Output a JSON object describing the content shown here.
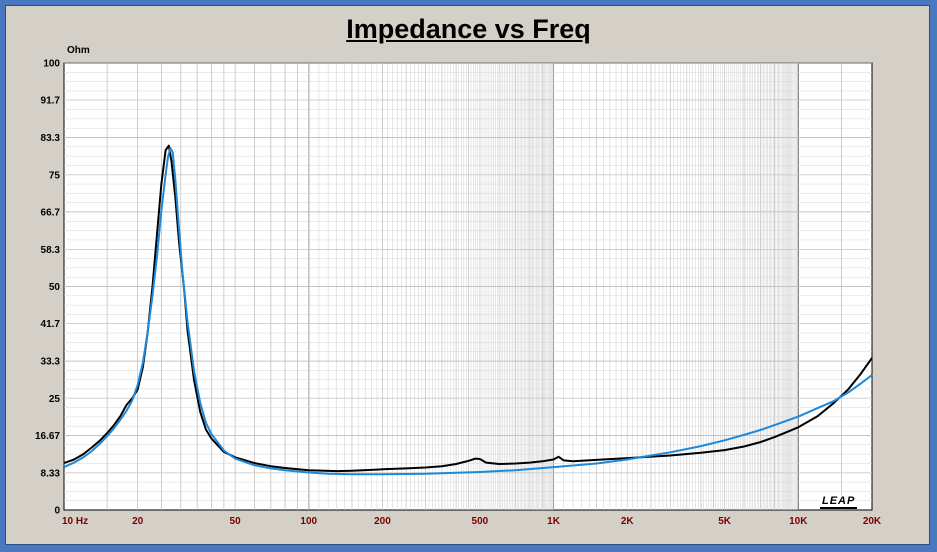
{
  "unit_label": "Ohm",
  "logo_text": "LEAP",
  "colors": {
    "frame_border": "#4a78c0",
    "panel": "#d4d0c8",
    "measured": "#000000",
    "model": "#1f88d8",
    "grid": "#9a9a9a",
    "x_tick": "#7a0000"
  },
  "chart_data": {
    "type": "line",
    "title": "Impedance vs Freq",
    "xlabel": "",
    "ylabel": "Ohm",
    "x_scale": "log",
    "xlim": [
      10,
      20000
    ],
    "ylim": [
      0,
      100
    ],
    "y_ticks": [
      {
        "value": 0,
        "label": "0"
      },
      {
        "value": 8.33,
        "label": "8.33"
      },
      {
        "value": 16.67,
        "label": "16.67"
      },
      {
        "value": 25,
        "label": "25"
      },
      {
        "value": 33.3,
        "label": "33.3"
      },
      {
        "value": 41.7,
        "label": "41.7"
      },
      {
        "value": 50,
        "label": "50"
      },
      {
        "value": 58.3,
        "label": "58.3"
      },
      {
        "value": 66.7,
        "label": "66.7"
      },
      {
        "value": 75,
        "label": "75"
      },
      {
        "value": 83.3,
        "label": "83.3"
      },
      {
        "value": 91.7,
        "label": "91.7"
      },
      {
        "value": 100,
        "label": "100"
      }
    ],
    "x_ticks": [
      {
        "value": 10,
        "label": "10  Hz"
      },
      {
        "value": 20,
        "label": "20"
      },
      {
        "value": 50,
        "label": "50"
      },
      {
        "value": 100,
        "label": "100"
      },
      {
        "value": 200,
        "label": "200"
      },
      {
        "value": 500,
        "label": "500"
      },
      {
        "value": 1000,
        "label": "1K"
      },
      {
        "value": 2000,
        "label": "2K"
      },
      {
        "value": 5000,
        "label": "5K"
      },
      {
        "value": 10000,
        "label": "10K"
      },
      {
        "value": 20000,
        "label": "20K"
      }
    ],
    "grid": true,
    "series": [
      {
        "color": "#000000",
        "points": [
          [
            10,
            10.5
          ],
          [
            11,
            11.3
          ],
          [
            12,
            12.5
          ],
          [
            13,
            14
          ],
          [
            14,
            15.5
          ],
          [
            15,
            17.2
          ],
          [
            16,
            19
          ],
          [
            17,
            21
          ],
          [
            18,
            23.5
          ],
          [
            19,
            25
          ],
          [
            20,
            27
          ],
          [
            21,
            32
          ],
          [
            22,
            40
          ],
          [
            23,
            50
          ],
          [
            24,
            62
          ],
          [
            25,
            73
          ],
          [
            26,
            80.5
          ],
          [
            26.8,
            81.5
          ],
          [
            27.5,
            78
          ],
          [
            28.5,
            70
          ],
          [
            29.5,
            60
          ],
          [
            31,
            49
          ],
          [
            32,
            40
          ],
          [
            34,
            29
          ],
          [
            36,
            22
          ],
          [
            38,
            18
          ],
          [
            40,
            16
          ],
          [
            45,
            13
          ],
          [
            50,
            11.8
          ],
          [
            60,
            10.5
          ],
          [
            70,
            9.8
          ],
          [
            80,
            9.4
          ],
          [
            100,
            8.9
          ],
          [
            130,
            8.7
          ],
          [
            150,
            8.8
          ],
          [
            200,
            9.1
          ],
          [
            250,
            9.3
          ],
          [
            300,
            9.5
          ],
          [
            350,
            9.8
          ],
          [
            400,
            10.3
          ],
          [
            450,
            11
          ],
          [
            480,
            11.5
          ],
          [
            500,
            11.4
          ],
          [
            530,
            10.6
          ],
          [
            600,
            10.3
          ],
          [
            700,
            10.4
          ],
          [
            800,
            10.6
          ],
          [
            900,
            10.9
          ],
          [
            1000,
            11.3
          ],
          [
            1050,
            11.9
          ],
          [
            1100,
            11.1
          ],
          [
            1200,
            10.9
          ],
          [
            1500,
            11.2
          ],
          [
            2000,
            11.6
          ],
          [
            3000,
            12.2
          ],
          [
            4000,
            12.8
          ],
          [
            5000,
            13.4
          ],
          [
            6000,
            14.2
          ],
          [
            7000,
            15.2
          ],
          [
            8000,
            16.3
          ],
          [
            10000,
            18.5
          ],
          [
            12000,
            21
          ],
          [
            14000,
            24
          ],
          [
            16000,
            27
          ],
          [
            18000,
            30.5
          ],
          [
            20000,
            34
          ]
        ]
      },
      {
        "color": "#1f88d8",
        "points": [
          [
            10,
            9.6
          ],
          [
            11,
            10.6
          ],
          [
            12,
            11.8
          ],
          [
            13,
            13.2
          ],
          [
            14,
            14.8
          ],
          [
            15,
            16.5
          ],
          [
            16,
            18.3
          ],
          [
            17,
            20.2
          ],
          [
            18,
            22.2
          ],
          [
            19,
            24.5
          ],
          [
            20,
            28
          ],
          [
            21,
            33
          ],
          [
            22,
            40
          ],
          [
            23,
            48
          ],
          [
            24,
            57
          ],
          [
            25,
            67
          ],
          [
            26,
            75
          ],
          [
            26.6,
            79
          ],
          [
            27.2,
            81
          ],
          [
            27.8,
            80
          ],
          [
            28.5,
            74
          ],
          [
            29.5,
            63
          ],
          [
            30.5,
            53
          ],
          [
            32,
            42
          ],
          [
            34,
            31
          ],
          [
            36,
            24
          ],
          [
            38,
            19.5
          ],
          [
            40,
            17
          ],
          [
            45,
            13.3
          ],
          [
            50,
            11.5
          ],
          [
            60,
            10
          ],
          [
            70,
            9.3
          ],
          [
            80,
            8.9
          ],
          [
            100,
            8.4
          ],
          [
            120,
            8.1
          ],
          [
            150,
            8
          ],
          [
            200,
            8
          ],
          [
            300,
            8.1
          ],
          [
            500,
            8.5
          ],
          [
            700,
            8.9
          ],
          [
            1000,
            9.6
          ],
          [
            1500,
            10.4
          ],
          [
            2000,
            11.3
          ],
          [
            3000,
            12.9
          ],
          [
            4000,
            14.3
          ],
          [
            5000,
            15.6
          ],
          [
            6000,
            16.8
          ],
          [
            7000,
            17.9
          ],
          [
            8000,
            19
          ],
          [
            10000,
            20.9
          ],
          [
            12000,
            22.8
          ],
          [
            14000,
            24.4
          ],
          [
            16000,
            26.3
          ],
          [
            18000,
            28.3
          ],
          [
            20000,
            30.2
          ]
        ]
      }
    ]
  }
}
